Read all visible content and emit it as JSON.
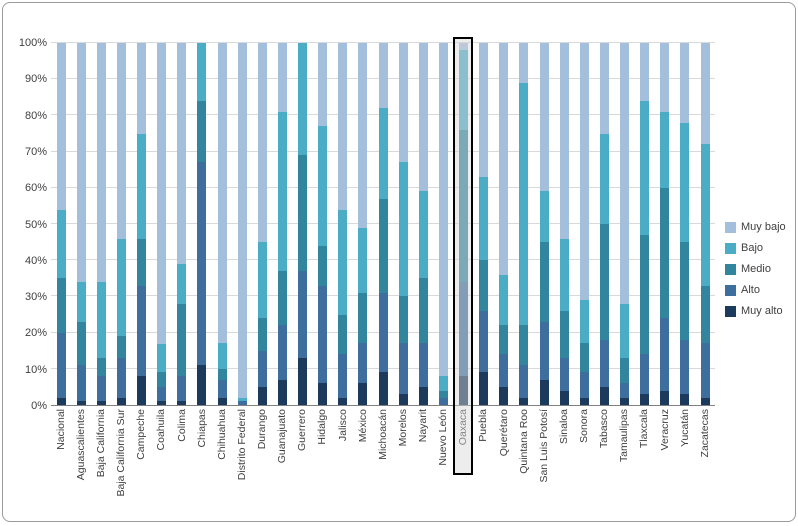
{
  "chart_data": {
    "type": "bar",
    "stacked": true,
    "stacked_percent": true,
    "title": "",
    "xlabel": "",
    "ylabel": "",
    "ylim": [
      0,
      100
    ],
    "ytick_step": 10,
    "grid": true,
    "legend_position": "right",
    "highlighted_category": "Oaxaca",
    "categories": [
      "Nacional",
      "Aguascalientes",
      "Baja California",
      "Baja California Sur",
      "Campeche",
      "Coahuila",
      "Colima",
      "Chiapas",
      "Chihuahua",
      "Distrito Federal",
      "Durango",
      "Guanajuato",
      "Guerrero",
      "Hidalgo",
      "Jalisco",
      "México",
      "Michoacán",
      "Morelos",
      "Nayarit",
      "Nuevo León",
      "Oaxaca",
      "Puebla",
      "Querétaro",
      "Quintana Roo",
      "San Luis Potosí",
      "Sinaloa",
      "Sonora",
      "Tabasco",
      "Tamaulipas",
      "Tlaxcala",
      "Veracruz",
      "Yucatán",
      "Zacatecas"
    ],
    "series": [
      {
        "name": "Muy bajo",
        "color": "#A3BFDB",
        "values": [
          46,
          66,
          66,
          54,
          25,
          83,
          61,
          0,
          83,
          98,
          55,
          19,
          0,
          23,
          46,
          51,
          18,
          33,
          41,
          92,
          2,
          37,
          64,
          11,
          41,
          54,
          71,
          25,
          72,
          16,
          19,
          22,
          28
        ]
      },
      {
        "name": "Bajo",
        "color": "#4BACC6",
        "values": [
          19,
          11,
          21,
          27,
          29,
          8,
          11,
          16,
          7,
          1,
          21,
          44,
          31,
          33,
          29,
          18,
          25,
          37,
          24,
          4,
          22,
          23,
          14,
          67,
          14,
          20,
          12,
          25,
          15,
          37,
          21,
          33,
          39
        ]
      },
      {
        "name": "Medio",
        "color": "#31859C",
        "values": [
          15,
          12,
          5,
          6,
          13,
          4,
          20,
          17,
          3,
          0,
          9,
          15,
          32,
          11,
          11,
          14,
          26,
          13,
          18,
          2,
          42,
          14,
          8,
          11,
          22,
          13,
          8,
          32,
          7,
          33,
          36,
          27,
          16
        ]
      },
      {
        "name": "Alto",
        "color": "#3D6E9E",
        "values": [
          18,
          10,
          7,
          11,
          25,
          4,
          7,
          56,
          5,
          1,
          10,
          15,
          24,
          27,
          12,
          11,
          22,
          14,
          12,
          2,
          26,
          17,
          9,
          9,
          16,
          9,
          7,
          13,
          4,
          11,
          20,
          15,
          15
        ]
      },
      {
        "name": "Muy alto",
        "color": "#1B3A5C",
        "values": [
          2,
          1,
          1,
          2,
          8,
          1,
          1,
          11,
          2,
          0,
          5,
          7,
          13,
          6,
          2,
          6,
          9,
          3,
          5,
          0,
          8,
          9,
          5,
          2,
          7,
          4,
          2,
          5,
          2,
          3,
          4,
          3,
          2
        ]
      }
    ]
  },
  "axis": {
    "y_tick_labels": [
      "0%",
      "10%",
      "20%",
      "30%",
      "40%",
      "50%",
      "60%",
      "70%",
      "80%",
      "90%",
      "100%"
    ]
  }
}
